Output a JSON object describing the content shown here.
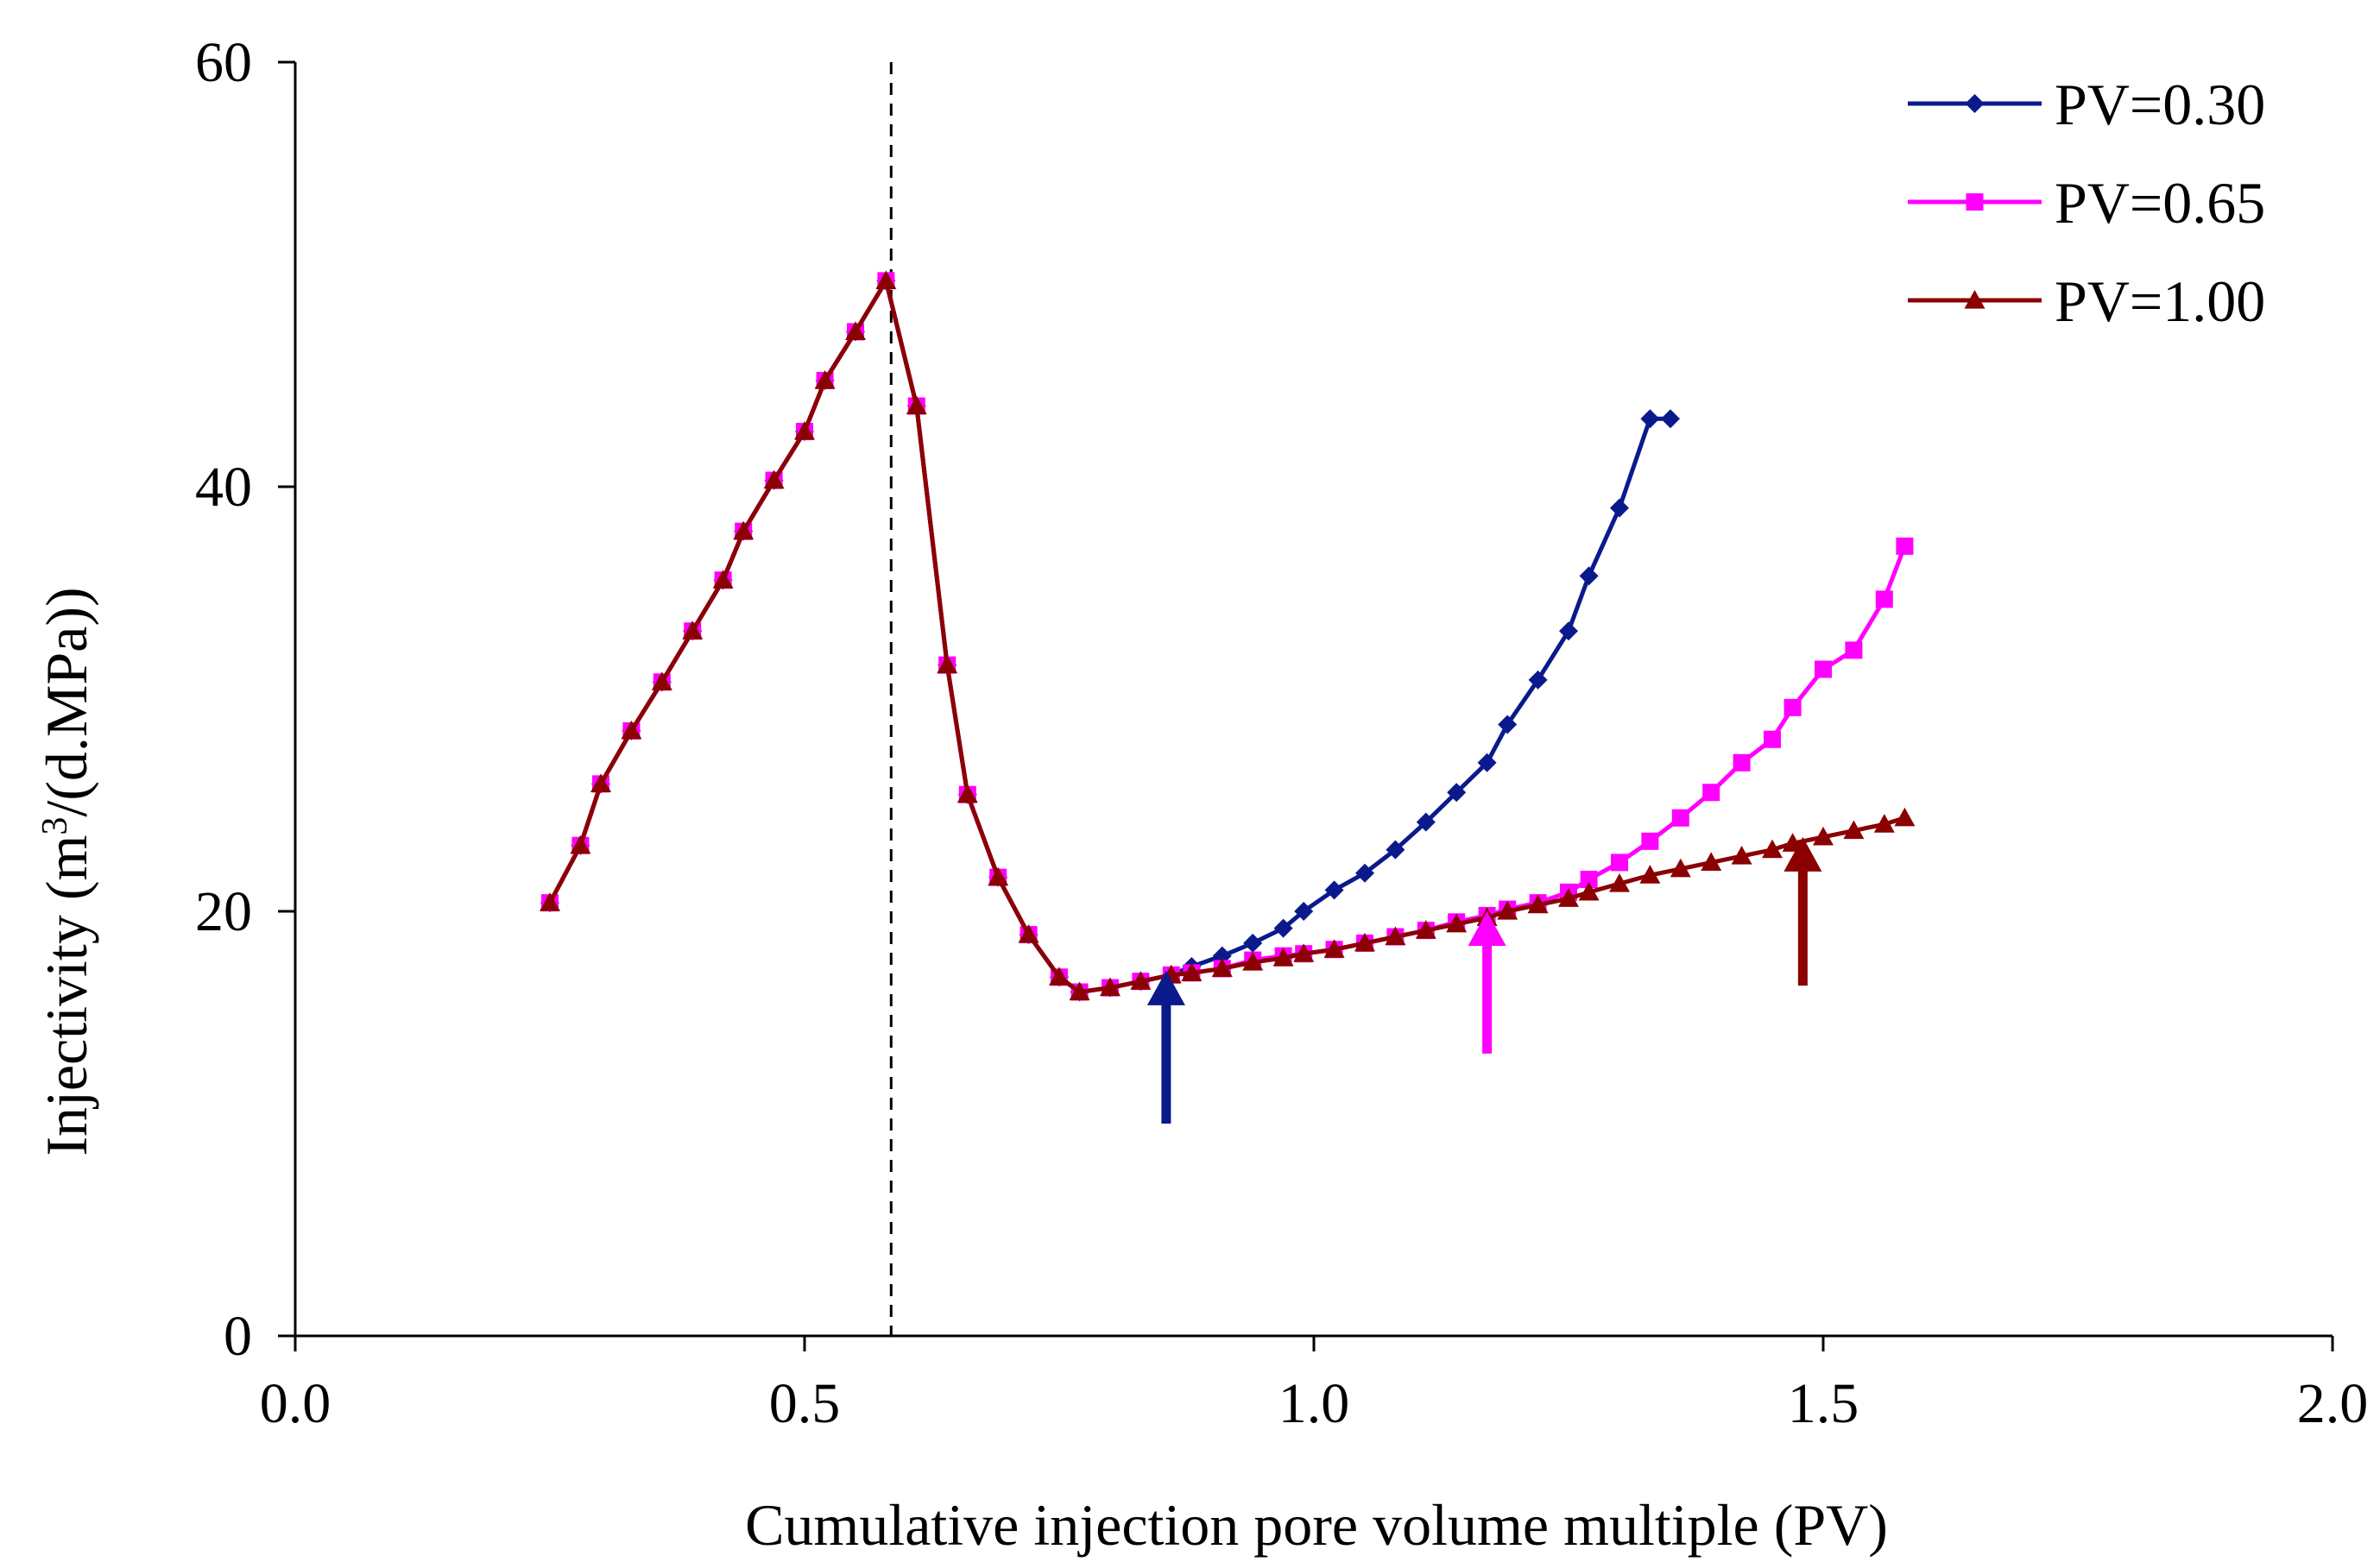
{
  "chart_data": {
    "type": "line",
    "xlabel": "Cumulative injection pore volume multiple (PV)",
    "ylabel_main": "Injectivity (m",
    "ylabel_sup": "3",
    "ylabel_tail": "/(d.MPa))",
    "xlim": [
      0.0,
      2.0
    ],
    "ylim": [
      0,
      60
    ],
    "xticks": [
      0.0,
      0.5,
      1.0,
      1.5,
      2.0
    ],
    "xtick_labels": [
      "0.0",
      "0.5",
      "1.0",
      "1.5",
      "2.0"
    ],
    "yticks": [
      0,
      20,
      40,
      60
    ],
    "ytick_labels": [
      "0",
      "20",
      "40",
      "60"
    ],
    "grid": false,
    "legend_position": "top-right",
    "reference_line_x": 0.585,
    "series": [
      {
        "name": "PV=0.30",
        "color": "#0a1a8c",
        "marker": "diamond",
        "x": [
          0.25,
          0.28,
          0.3,
          0.33,
          0.36,
          0.39,
          0.42,
          0.44,
          0.47,
          0.5,
          0.52,
          0.55,
          0.58,
          0.61,
          0.64,
          0.66,
          0.69,
          0.72,
          0.75,
          0.77,
          0.8,
          0.83,
          0.86,
          0.88,
          0.91,
          0.94,
          0.97,
          0.99,
          1.02,
          1.05,
          1.08,
          1.11,
          1.14,
          1.17,
          1.19,
          1.22,
          1.25,
          1.27,
          1.3,
          1.33,
          1.35
        ],
        "y": [
          20.4,
          23.1,
          26.0,
          28.5,
          30.8,
          33.2,
          35.6,
          37.9,
          40.3,
          42.6,
          45.0,
          47.3,
          49.7,
          43.8,
          31.6,
          25.5,
          21.6,
          18.9,
          16.9,
          16.2,
          16.4,
          16.7,
          17.0,
          17.4,
          17.9,
          18.5,
          19.2,
          20.0,
          21.0,
          21.8,
          22.9,
          24.2,
          25.6,
          27.0,
          28.8,
          30.9,
          33.2,
          35.8,
          39.0,
          43.2,
          43.2
        ]
      },
      {
        "name": "PV=0.65",
        "color": "#ff00ff",
        "marker": "square",
        "x": [
          0.25,
          0.28,
          0.3,
          0.33,
          0.36,
          0.39,
          0.42,
          0.44,
          0.47,
          0.5,
          0.52,
          0.55,
          0.58,
          0.61,
          0.64,
          0.66,
          0.69,
          0.72,
          0.75,
          0.77,
          0.8,
          0.83,
          0.86,
          0.88,
          0.91,
          0.94,
          0.97,
          0.99,
          1.02,
          1.05,
          1.08,
          1.11,
          1.14,
          1.17,
          1.19,
          1.22,
          1.25,
          1.27,
          1.3,
          1.33,
          1.36,
          1.39,
          1.42,
          1.45,
          1.47,
          1.5,
          1.53,
          1.56,
          1.58
        ],
        "y": [
          20.4,
          23.1,
          26.0,
          28.5,
          30.8,
          33.2,
          35.6,
          37.9,
          40.3,
          42.6,
          45.0,
          47.3,
          49.7,
          43.8,
          31.6,
          25.5,
          21.6,
          18.9,
          16.9,
          16.2,
          16.4,
          16.7,
          17.0,
          17.1,
          17.3,
          17.7,
          17.9,
          18.0,
          18.2,
          18.5,
          18.8,
          19.1,
          19.5,
          19.8,
          20.1,
          20.4,
          20.9,
          21.5,
          22.3,
          23.3,
          24.4,
          25.6,
          27.0,
          28.1,
          29.6,
          31.4,
          32.3,
          34.7,
          37.2
        ]
      },
      {
        "name": "PV=1.00",
        "color": "#8b0000",
        "marker": "triangle",
        "x": [
          0.25,
          0.28,
          0.3,
          0.33,
          0.36,
          0.39,
          0.42,
          0.44,
          0.47,
          0.5,
          0.52,
          0.55,
          0.58,
          0.61,
          0.64,
          0.66,
          0.69,
          0.72,
          0.75,
          0.77,
          0.8,
          0.83,
          0.86,
          0.88,
          0.91,
          0.94,
          0.97,
          0.99,
          1.02,
          1.05,
          1.08,
          1.11,
          1.14,
          1.17,
          1.19,
          1.22,
          1.25,
          1.27,
          1.3,
          1.33,
          1.36,
          1.39,
          1.42,
          1.45,
          1.47,
          1.5,
          1.53,
          1.56,
          1.58
        ],
        "y": [
          20.4,
          23.1,
          26.0,
          28.5,
          30.8,
          33.2,
          35.6,
          37.9,
          40.3,
          42.6,
          45.0,
          47.3,
          49.7,
          43.8,
          31.6,
          25.5,
          21.6,
          18.9,
          16.9,
          16.2,
          16.4,
          16.7,
          17.0,
          17.1,
          17.3,
          17.6,
          17.8,
          18.0,
          18.2,
          18.5,
          18.8,
          19.1,
          19.4,
          19.7,
          20.0,
          20.3,
          20.6,
          20.9,
          21.3,
          21.7,
          22.0,
          22.3,
          22.6,
          22.9,
          23.2,
          23.5,
          23.8,
          24.1,
          24.4
        ]
      }
    ],
    "arrows": [
      {
        "color": "#0a1a8c",
        "x": 0.855,
        "y_from": 10.0,
        "y_to": 17.2
      },
      {
        "color": "#ff00ff",
        "x": 1.17,
        "y_from": 13.3,
        "y_to": 20.0
      },
      {
        "color": "#8b0000",
        "x": 1.48,
        "y_from": 16.5,
        "y_to": 23.5
      }
    ]
  }
}
